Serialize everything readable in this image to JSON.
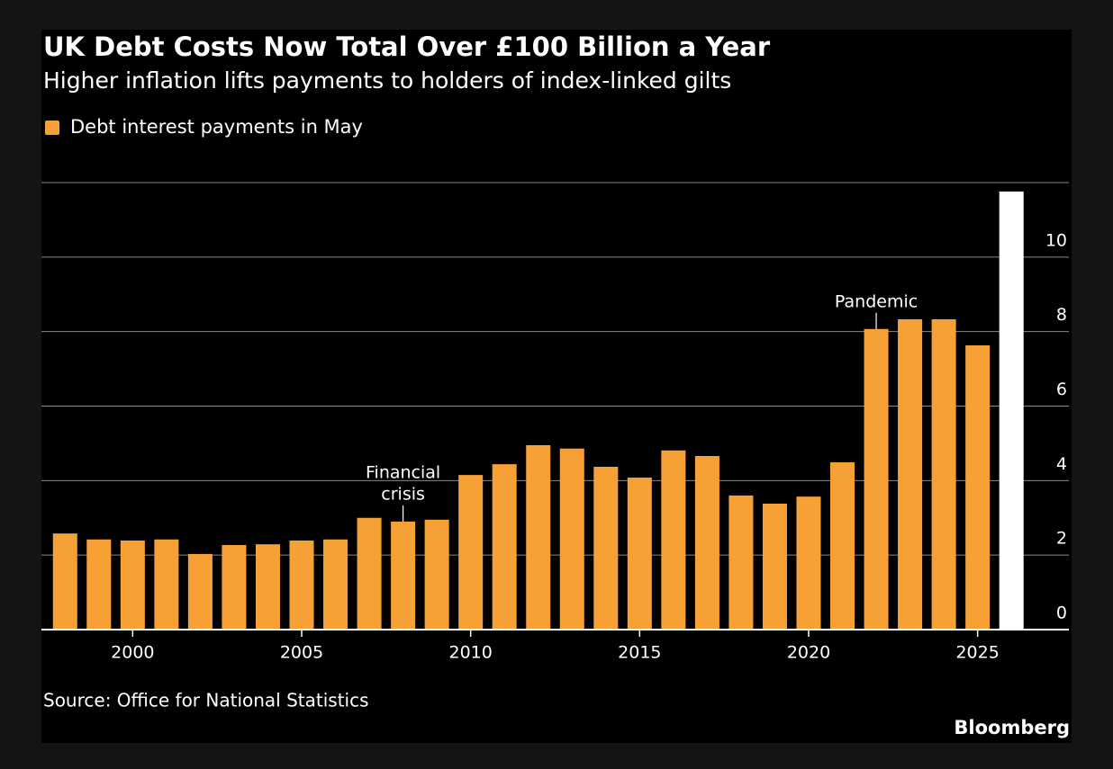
{
  "chart_data": {
    "type": "bar",
    "title": "UK Debt Costs Now Total Over £100 Billion a Year",
    "subtitle": "Higher inflation lifts payments to holders of index-linked gilts",
    "series": [
      {
        "name": "Debt interest payments in May",
        "color": "#f7a035"
      }
    ],
    "x": [
      1998,
      1999,
      2000,
      2001,
      2002,
      2003,
      2004,
      2005,
      2006,
      2007,
      2008,
      2009,
      2010,
      2011,
      2012,
      2013,
      2014,
      2015,
      2016,
      2017,
      2018,
      2019,
      2020,
      2021,
      2022,
      2023,
      2024,
      2025,
      2026
    ],
    "values": [
      2.58,
      2.42,
      2.39,
      2.42,
      2.03,
      2.27,
      2.29,
      2.39,
      2.42,
      3.0,
      2.9,
      2.95,
      4.15,
      4.44,
      4.95,
      4.86,
      4.37,
      4.08,
      4.81,
      4.66,
      3.6,
      3.38,
      3.57,
      4.49,
      8.07,
      8.33,
      8.33,
      7.63,
      11.76
    ],
    "colors": [
      "#f7a035",
      "#f7a035",
      "#f7a035",
      "#f7a035",
      "#f7a035",
      "#f7a035",
      "#f7a035",
      "#f7a035",
      "#f7a035",
      "#f7a035",
      "#f7a035",
      "#f7a035",
      "#f7a035",
      "#f7a035",
      "#f7a035",
      "#f7a035",
      "#f7a035",
      "#f7a035",
      "#f7a035",
      "#f7a035",
      "#f7a035",
      "#f7a035",
      "#f7a035",
      "#f7a035",
      "#f7a035",
      "#f7a035",
      "#f7a035",
      "#f7a035",
      "#ffffff"
    ],
    "xlim": [
      1997.3,
      2027.7
    ],
    "xticks": [
      2000,
      2005,
      2010,
      2015,
      2020,
      2025
    ],
    "ylim": [
      0,
      12
    ],
    "yticks": [
      0,
      2,
      4,
      6,
      8,
      10
    ],
    "grid": true,
    "annotations": [
      {
        "x": 2008,
        "lines": [
          "Financial",
          "crisis"
        ]
      },
      {
        "x": 2022,
        "lines": [
          "Pandemic"
        ]
      }
    ],
    "source": "Source: Office for National Statistics",
    "brand": "Bloomberg"
  }
}
